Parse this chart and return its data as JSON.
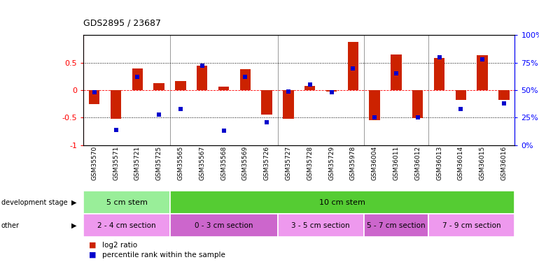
{
  "title": "GDS2895 / 23687",
  "samples": [
    "GSM35570",
    "GSM35571",
    "GSM35721",
    "GSM35725",
    "GSM35565",
    "GSM35567",
    "GSM35568",
    "GSM35569",
    "GSM35726",
    "GSM35727",
    "GSM35728",
    "GSM35729",
    "GSM35978",
    "GSM36004",
    "GSM36011",
    "GSM36012",
    "GSM36013",
    "GSM36014",
    "GSM36015",
    "GSM36016"
  ],
  "log2_ratio": [
    -0.25,
    -0.52,
    0.4,
    0.13,
    0.16,
    0.44,
    0.06,
    0.38,
    -0.45,
    -0.52,
    0.08,
    -0.03,
    0.88,
    -0.55,
    0.65,
    -0.51,
    0.58,
    -0.18,
    0.63,
    -0.18
  ],
  "percentile": [
    48,
    14,
    62,
    28,
    33,
    72,
    13,
    62,
    21,
    49,
    55,
    48,
    70,
    25,
    65,
    25,
    80,
    33,
    78,
    38
  ],
  "bar_color": "#cc2200",
  "dot_color": "#0000cc",
  "ylim": [
    -1,
    1
  ],
  "right_ylim": [
    0,
    100
  ],
  "dev_stage_groups": [
    {
      "label": "5 cm stem",
      "start": 0,
      "end": 4,
      "color": "#99ee99"
    },
    {
      "label": "10 cm stem",
      "start": 4,
      "end": 20,
      "color": "#55cc33"
    }
  ],
  "other_groups": [
    {
      "label": "2 - 4 cm section",
      "start": 0,
      "end": 4,
      "color": "#ee99ee"
    },
    {
      "label": "0 - 3 cm section",
      "start": 4,
      "end": 9,
      "color": "#cc66cc"
    },
    {
      "label": "3 - 5 cm section",
      "start": 9,
      "end": 13,
      "color": "#ee99ee"
    },
    {
      "label": "5 - 7 cm section",
      "start": 13,
      "end": 16,
      "color": "#cc66cc"
    },
    {
      "label": "7 - 9 cm section",
      "start": 16,
      "end": 20,
      "color": "#ee99ee"
    }
  ],
  "legend_log2": "log2 ratio",
  "legend_pct": "percentile rank within the sample",
  "bg_color": "#ffffff"
}
